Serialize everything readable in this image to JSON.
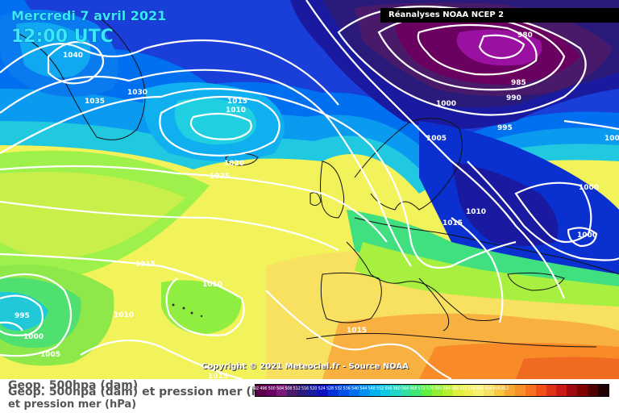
{
  "header": {
    "date": "Mercredi 7 avril 2021",
    "time": "12:00 UTC",
    "source": "Réanalyses NOAA NCEP 2"
  },
  "copyright": "Copyright © 2021 Meteociel.fr - Source NOAA",
  "captions": {
    "geop": "Geop. 500hpa (dam)",
    "geop_full": "Geop. 500hpa (dam) et pression mer (hPa)",
    "pression": "et pression mer (hPa)"
  },
  "isobar_labels": [
    "1040",
    "1035",
    "1030",
    "1015",
    "1010",
    "1020",
    "1025",
    "1015",
    "1010",
    "1010",
    "995",
    "1000",
    "1005",
    "1015",
    "980",
    "985",
    "990",
    "1000",
    "995",
    "1005",
    "1000",
    "1010",
    "1015",
    "1000",
    "100"
  ],
  "color_scale": [
    "#5a004a",
    "#6a0060",
    "#7a1a7a",
    "#4a1a6a",
    "#2a1a7a",
    "#1a1aa0",
    "#0a10c0",
    "#0030d8",
    "#0050e8",
    "#0070f0",
    "#0090f0",
    "#00b0f0",
    "#10c8e0",
    "#20d8c8",
    "#30e0a0",
    "#40e870",
    "#60f040",
    "#90f030",
    "#b8f030",
    "#e0f040",
    "#f0f050",
    "#f8f070",
    "#f8e060",
    "#f8c840",
    "#f8a830",
    "#f8902a",
    "#f87020",
    "#f05018",
    "#e03018",
    "#c81818",
    "#a00810",
    "#800000",
    "#500000",
    "#200000"
  ],
  "scale_values": "492 496 500 504 508 512 516 520 524 528 532 536 540 544 548 552 556 560 564 568 572 576 580 584 588 592 596 600 604 608 612"
}
